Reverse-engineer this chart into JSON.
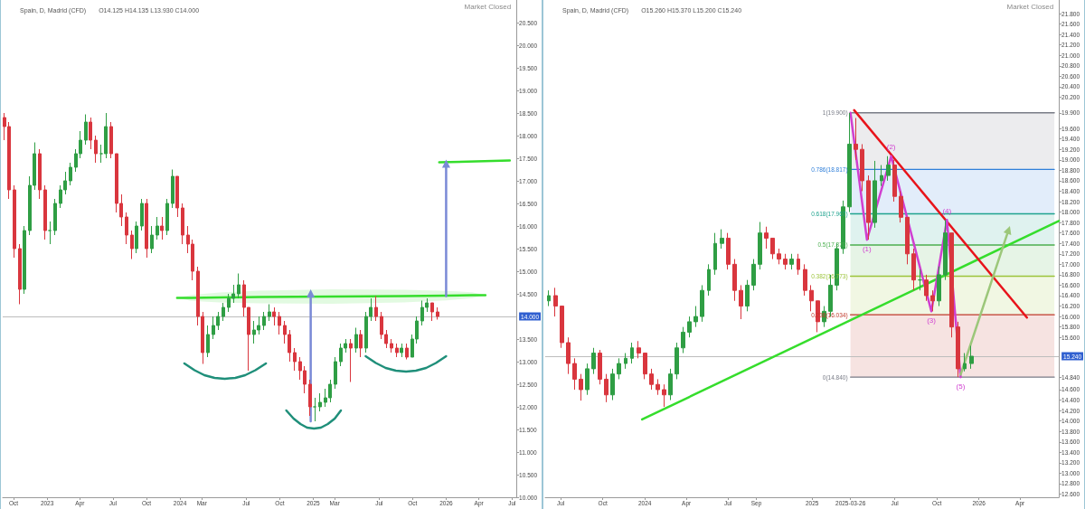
{
  "chart_data": [
    {
      "type": "candlestick",
      "title": "Spain, D, Madrid (CFD)",
      "subtitle": "O14.125 H14.135 L13.930 C14.000",
      "x": [
        "2022-09-05",
        "2022-09-19",
        "2022-10-03",
        "2022-10-17",
        "2022-10-31",
        "2022-11-14",
        "2022-11-28",
        "2022-12-12",
        "2022-12-26",
        "2023-01-09",
        "2023-01-23",
        "2023-02-06",
        "2023-02-20",
        "2023-03-06",
        "2023-03-20",
        "2023-04-03",
        "2023-04-17",
        "2023-05-01",
        "2023-05-15",
        "2023-05-29",
        "2023-06-12",
        "2023-06-26",
        "2023-07-10",
        "2023-07-24",
        "2023-08-07",
        "2023-08-21",
        "2023-09-04",
        "2023-09-18",
        "2023-10-02",
        "2023-10-16",
        "2023-10-30",
        "2023-11-13",
        "2023-11-27",
        "2023-12-11",
        "2023-12-25",
        "2024-01-08",
        "2024-01-22",
        "2024-02-05",
        "2024-02-19",
        "2024-03-04",
        "2024-03-18",
        "2024-04-01",
        "2024-04-15",
        "2024-04-29",
        "2024-05-13",
        "2024-05-27",
        "2024-06-10",
        "2024-06-24",
        "2024-07-08",
        "2024-07-22",
        "2024-08-05",
        "2024-08-19",
        "2024-09-02",
        "2024-09-16",
        "2024-09-30",
        "2024-10-14",
        "2024-10-28",
        "2024-11-11",
        "2024-11-25",
        "2024-12-09",
        "2024-12-23",
        "2025-01-06",
        "2025-01-20",
        "2025-02-03",
        "2025-02-17",
        "2025-03-03",
        "2025-03-17",
        "2025-03-31",
        "2025-04-14",
        "2025-04-28",
        "2025-05-12",
        "2025-05-26",
        "2025-06-09",
        "2025-06-23",
        "2025-07-07",
        "2025-07-21",
        "2025-08-04",
        "2025-08-18",
        "2025-09-01",
        "2025-09-15",
        "2025-09-29",
        "2025-10-13",
        "2025-10-27",
        "2025-11-10",
        "2025-11-24",
        "2025-12-08"
      ],
      "ohlc": [
        [
          18.4,
          18.5,
          17.9,
          18.2
        ],
        [
          18.2,
          18.3,
          16.6,
          16.8
        ],
        [
          16.8,
          16.9,
          15.3,
          15.5
        ],
        [
          15.5,
          15.6,
          14.27,
          14.6
        ],
        [
          14.6,
          16.0,
          14.5,
          15.9
        ],
        [
          15.9,
          17.1,
          15.8,
          16.9
        ],
        [
          16.9,
          17.85,
          16.8,
          17.6
        ],
        [
          17.6,
          17.7,
          16.6,
          16.8
        ],
        [
          16.8,
          16.9,
          15.7,
          15.9
        ],
        [
          15.9,
          16.1,
          15.6,
          15.9
        ],
        [
          15.9,
          16.6,
          15.8,
          16.5
        ],
        [
          16.5,
          16.9,
          16.4,
          16.8
        ],
        [
          16.8,
          17.2,
          16.7,
          17.0
        ],
        [
          17.0,
          17.4,
          16.9,
          17.3
        ],
        [
          17.3,
          17.7,
          17.2,
          17.6
        ],
        [
          17.6,
          18.1,
          17.5,
          17.9
        ],
        [
          17.9,
          18.47,
          17.8,
          18.3
        ],
        [
          18.3,
          18.4,
          17.7,
          17.9
        ],
        [
          17.9,
          18.0,
          17.4,
          17.6
        ],
        [
          17.6,
          17.8,
          17.4,
          17.6
        ],
        [
          17.6,
          18.5,
          17.5,
          18.2
        ],
        [
          18.2,
          18.3,
          17.5,
          17.6
        ],
        [
          17.6,
          17.6,
          16.3,
          16.5
        ],
        [
          16.5,
          16.7,
          16.0,
          16.2
        ],
        [
          16.2,
          16.3,
          15.6,
          15.8
        ],
        [
          15.8,
          15.9,
          15.27,
          15.5
        ],
        [
          15.5,
          16.1,
          15.4,
          16.0
        ],
        [
          16.0,
          16.6,
          15.9,
          16.5
        ],
        [
          16.5,
          16.6,
          15.3,
          15.5
        ],
        [
          15.5,
          16.0,
          15.4,
          15.8
        ],
        [
          15.8,
          16.2,
          15.7,
          16.0
        ],
        [
          16.0,
          16.2,
          15.7,
          15.9
        ],
        [
          15.9,
          16.6,
          15.8,
          16.5
        ],
        [
          16.5,
          17.25,
          16.4,
          17.1
        ],
        [
          17.1,
          17.1,
          16.2,
          16.4
        ],
        [
          16.4,
          16.5,
          15.6,
          15.8
        ],
        [
          15.8,
          16.0,
          15.4,
          15.6
        ],
        [
          15.6,
          15.7,
          14.8,
          15.0
        ],
        [
          15.0,
          15.1,
          13.8,
          14.0
        ],
        [
          14.0,
          14.1,
          12.95,
          13.2
        ],
        [
          13.2,
          13.8,
          13.1,
          13.6
        ],
        [
          13.6,
          14.0,
          13.5,
          13.8
        ],
        [
          13.8,
          14.1,
          13.7,
          14.0
        ],
        [
          14.0,
          14.3,
          13.9,
          14.2
        ],
        [
          14.2,
          14.5,
          14.1,
          14.4
        ],
        [
          14.4,
          14.7,
          14.3,
          14.5
        ],
        [
          14.5,
          14.95,
          14.4,
          14.7
        ],
        [
          14.7,
          14.8,
          14.0,
          14.2
        ],
        [
          14.2,
          14.2,
          12.8,
          13.6
        ],
        [
          13.6,
          13.9,
          13.4,
          13.7
        ],
        [
          13.7,
          14.0,
          13.6,
          13.8
        ],
        [
          13.8,
          14.1,
          13.7,
          14.0
        ],
        [
          14.0,
          14.27,
          13.9,
          14.1
        ],
        [
          14.1,
          14.2,
          13.8,
          14.0
        ],
        [
          14.0,
          14.1,
          13.6,
          13.8
        ],
        [
          13.8,
          13.9,
          13.4,
          13.6
        ],
        [
          13.6,
          13.7,
          13.0,
          13.2
        ],
        [
          13.2,
          13.3,
          12.8,
          13.0
        ],
        [
          13.0,
          13.1,
          12.6,
          12.8
        ],
        [
          12.8,
          12.9,
          12.3,
          12.5
        ],
        [
          12.5,
          12.6,
          11.8,
          12.0
        ],
        [
          12.0,
          12.2,
          11.68,
          12.0
        ],
        [
          12.0,
          12.3,
          11.9,
          12.1
        ],
        [
          12.1,
          12.4,
          12.0,
          12.2
        ],
        [
          12.2,
          12.6,
          12.1,
          12.5
        ],
        [
          12.5,
          13.1,
          12.4,
          13.0
        ],
        [
          13.0,
          13.4,
          12.9,
          13.3
        ],
        [
          13.3,
          13.5,
          13.2,
          13.4
        ],
        [
          13.4,
          13.5,
          12.55,
          13.3
        ],
        [
          13.3,
          13.75,
          13.2,
          13.6
        ],
        [
          13.6,
          13.7,
          13.1,
          13.3
        ],
        [
          13.3,
          14.1,
          13.2,
          14.0
        ],
        [
          14.0,
          14.4,
          13.9,
          14.2
        ],
        [
          14.2,
          14.45,
          13.9,
          14.0
        ],
        [
          14.0,
          14.1,
          13.5,
          13.6
        ],
        [
          13.6,
          13.7,
          13.3,
          13.4
        ],
        [
          13.4,
          13.5,
          13.2,
          13.3
        ],
        [
          13.3,
          13.4,
          13.1,
          13.2
        ],
        [
          13.2,
          13.4,
          13.1,
          13.3
        ],
        [
          13.3,
          13.4,
          13.05,
          13.1
        ],
        [
          13.1,
          13.6,
          13.1,
          13.5
        ],
        [
          13.5,
          14.0,
          13.4,
          13.9
        ],
        [
          13.9,
          14.35,
          13.8,
          14.2
        ],
        [
          14.2,
          14.4,
          14.1,
          14.3
        ],
        [
          14.3,
          14.3,
          13.9,
          14.1
        ],
        [
          14.1,
          14.2,
          13.93,
          14.0
        ]
      ],
      "colors": [
        "#d9363e",
        "#d9363e",
        "#d9363e",
        "#d9363e",
        "#2f9e44",
        "#2f9e44",
        "#2f9e44",
        "#d9363e",
        "#d9363e",
        "#2f9e44",
        "#2f9e44",
        "#2f9e44",
        "#2f9e44",
        "#2f9e44",
        "#2f9e44",
        "#2f9e44",
        "#2f9e44",
        "#d9363e",
        "#d9363e",
        "#2f9e44",
        "#2f9e44",
        "#d9363e",
        "#d9363e",
        "#d9363e",
        "#d9363e",
        "#d9363e",
        "#2f9e44",
        "#2f9e44",
        "#d9363e",
        "#2f9e44",
        "#2f9e44",
        "#d9363e",
        "#2f9e44",
        "#2f9e44",
        "#d9363e",
        "#d9363e",
        "#d9363e",
        "#d9363e",
        "#d9363e",
        "#d9363e",
        "#2f9e44",
        "#2f9e44",
        "#2f9e44",
        "#2f9e44",
        "#2f9e44",
        "#2f9e44",
        "#2f9e44",
        "#d9363e",
        "#d9363e",
        "#2f9e44",
        "#2f9e44",
        "#2f9e44",
        "#2f9e44",
        "#d9363e",
        "#d9363e",
        "#d9363e",
        "#d9363e",
        "#d9363e",
        "#d9363e",
        "#d9363e",
        "#d9363e",
        "#2f9e44",
        "#2f9e44",
        "#2f9e44",
        "#2f9e44",
        "#2f9e44",
        "#2f9e44",
        "#2f9e44",
        "#d9363e",
        "#2f9e44",
        "#d9363e",
        "#2f9e44",
        "#2f9e44",
        "#d9363e",
        "#d9363e",
        "#d9363e",
        "#d9363e",
        "#d9363e",
        "#2f9e44",
        "#d9363e",
        "#2f9e44",
        "#2f9e44",
        "#2f9e44",
        "#2f9e44",
        "#d9363e",
        "#d9363e"
      ],
      "series": [
        {
          "type": "line",
          "color": "#35dd2c",
          "x": [
            "2023-12-24",
            "2024-01-31",
            "2024-04-19",
            "2024-08-07",
            "2025-02-21",
            "2025-09-06",
            "2026-01-01",
            "2026-03-13",
            "2026-04-19"
          ],
          "values": [
            14.41,
            14.41,
            14.42,
            14.43,
            14.44,
            14.45,
            14.46,
            14.47,
            14.47
          ],
          "lower": [
            14.41,
            14.343,
            14.31,
            14.288,
            14.28,
            14.308,
            14.353,
            14.405,
            14.47
          ],
          "upper": [
            14.41,
            14.477,
            14.53,
            14.572,
            14.6,
            14.592,
            14.567,
            14.535,
            14.47
          ]
        },
        {
          "type": "line",
          "color": "#35dd2c",
          "x": [
            "2025-12-13",
            "2026-06-25"
          ],
          "values": [
            17.41,
            17.45
          ]
        },
        {
          "type": "line",
          "color": "#7a8ad6",
          "marker": "triangle",
          "x": [
            "2024-12-25",
            "2024-12-25"
          ],
          "values": [
            11.68,
            14.51
          ]
        },
        {
          "type": "line",
          "color": "#7a8ad6",
          "marker": "triangle",
          "x": [
            "2026-01-01",
            "2026-01-01"
          ],
          "values": [
            14.45,
            17.38
          ]
        },
        {
          "type": "line",
          "color": "#1f8f7a",
          "x": [
            "2024-01-13",
            "2024-02-10",
            "2024-03-08",
            "2024-04-05",
            "2024-05-03",
            "2024-06-01",
            "2024-06-28",
            "2024-07-26",
            "2024-08-24"
          ],
          "values": [
            12.96,
            12.81,
            12.7,
            12.64,
            12.62,
            12.64,
            12.7,
            12.81,
            12.96
          ]
        },
        {
          "type": "line",
          "color": "#1f8f7a",
          "x": [
            "2024-10-19",
            "2024-11-08",
            "2024-11-27",
            "2024-12-15",
            "2025-01-03",
            "2025-01-22",
            "2025-02-10",
            "2025-03-01",
            "2025-03-18"
          ],
          "values": [
            11.92,
            11.74,
            11.62,
            11.54,
            11.52,
            11.54,
            11.62,
            11.74,
            11.92
          ]
        },
        {
          "type": "line",
          "color": "#1f8f7a",
          "x": [
            "2025-05-25",
            "2025-06-22",
            "2025-07-19",
            "2025-08-16",
            "2025-09-13",
            "2025-10-10",
            "2025-11-07",
            "2025-12-04",
            "2026-01-01"
          ],
          "values": [
            13.12,
            12.97,
            12.86,
            12.8,
            12.78,
            12.8,
            12.86,
            12.97,
            13.12
          ]
        }
      ],
      "ref_lines": [
        {
          "axis": "y",
          "value": 14.0,
          "label": "14.000",
          "color": "#bdbdbd"
        }
      ],
      "annotations": [
        "Market Closed"
      ],
      "xlim": [
        "2022-09-01",
        "2026-07-13"
      ],
      "xticks": [
        {
          "value": "2022-10-01",
          "label": "Oct"
        },
        {
          "value": "2023-01-01",
          "label": "2023"
        },
        {
          "value": "2023-04-01",
          "label": "Apr"
        },
        {
          "value": "2023-07-01",
          "label": "Jul"
        },
        {
          "value": "2023-10-01",
          "label": "Oct"
        },
        {
          "value": "2024-01-01",
          "label": "2024"
        },
        {
          "value": "2024-03-01",
          "label": "Mar"
        },
        {
          "value": "2024-07-01",
          "label": "Jul"
        },
        {
          "value": "2024-10-01",
          "label": "Oct"
        },
        {
          "value": "2025-01-01",
          "label": "2025"
        },
        {
          "value": "2025-03-01",
          "label": "Mar"
        },
        {
          "value": "2025-07-01",
          "label": "Jul"
        },
        {
          "value": "2025-10-01",
          "label": "Oct"
        },
        {
          "value": "2026-01-01",
          "label": "2026"
        },
        {
          "value": "2026-04-01",
          "label": "Apr"
        },
        {
          "value": "2026-07-01",
          "label": "Jul"
        }
      ],
      "ylim": [
        10,
        21
      ],
      "yticks": [
        {
          "value": 10,
          "label": "10.000"
        },
        {
          "value": 10.5,
          "label": "10.500"
        },
        {
          "value": 11,
          "label": "11.000"
        },
        {
          "value": 11.5,
          "label": "11.500"
        },
        {
          "value": 12,
          "label": "12.000"
        },
        {
          "value": 12.5,
          "label": "12.500"
        },
        {
          "value": 13,
          "label": "13.000"
        },
        {
          "value": 13.5,
          "label": "13.500"
        },
        {
          "value": 14.5,
          "label": "14.500"
        },
        {
          "value": 15,
          "label": "15.000"
        },
        {
          "value": 15.5,
          "label": "15.500"
        },
        {
          "value": 16,
          "label": "16.000"
        },
        {
          "value": 16.5,
          "label": "16.500"
        },
        {
          "value": 17,
          "label": "17.000"
        },
        {
          "value": 17.5,
          "label": "17.500"
        },
        {
          "value": 18,
          "label": "18.000"
        },
        {
          "value": 18.5,
          "label": "18.500"
        },
        {
          "value": 19,
          "label": "19.000"
        },
        {
          "value": 19.5,
          "label": "19.500"
        },
        {
          "value": 20,
          "label": "20.000"
        },
        {
          "value": 20.5,
          "label": "20.500"
        }
      ],
      "grid": false,
      "legend": false
    },
    {
      "type": "candlestick",
      "title": "Spain, D, Madrid (CFD)",
      "subtitle": "O15.260 H15.370 L15.200 C15.240",
      "x": [
        "2023-06-05",
        "2023-06-19",
        "2023-07-03",
        "2023-07-17",
        "2023-07-31",
        "2023-08-14",
        "2023-08-28",
        "2023-09-11",
        "2023-09-25",
        "2023-10-09",
        "2023-10-23",
        "2023-11-06",
        "2023-11-20",
        "2023-12-04",
        "2023-12-18",
        "2024-01-01",
        "2024-01-15",
        "2024-01-29",
        "2024-02-12",
        "2024-02-26",
        "2024-03-11",
        "2024-03-25",
        "2024-04-08",
        "2024-04-22",
        "2024-05-06",
        "2024-05-20",
        "2024-06-03",
        "2024-06-17",
        "2024-07-01",
        "2024-07-15",
        "2024-07-29",
        "2024-08-12",
        "2024-08-26",
        "2024-09-09",
        "2024-09-23",
        "2024-10-07",
        "2024-10-21",
        "2024-11-04",
        "2024-11-18",
        "2024-12-02",
        "2024-12-16",
        "2024-12-30",
        "2025-01-13",
        "2025-01-27",
        "2025-02-10",
        "2025-02-24",
        "2025-03-10",
        "2025-03-24",
        "2025-04-07",
        "2025-04-21",
        "2025-05-05",
        "2025-05-19",
        "2025-06-02",
        "2025-06-16",
        "2025-06-30",
        "2025-07-14",
        "2025-07-28",
        "2025-08-11",
        "2025-08-25",
        "2025-09-08",
        "2025-09-22",
        "2025-10-06",
        "2025-10-20",
        "2025-11-03",
        "2025-11-17",
        "2025-12-01",
        "2025-12-15"
      ],
      "ohlc": [
        [
          16.3,
          16.5,
          16.2,
          16.4
        ],
        [
          16.4,
          16.55,
          16.0,
          16.2
        ],
        [
          16.2,
          16.2,
          15.4,
          15.5
        ],
        [
          15.5,
          15.6,
          14.9,
          15.1
        ],
        [
          15.1,
          15.2,
          14.6,
          14.8
        ],
        [
          14.8,
          14.9,
          14.39,
          14.6
        ],
        [
          14.6,
          15.1,
          14.5,
          15.0
        ],
        [
          15.0,
          15.4,
          14.9,
          15.3
        ],
        [
          15.3,
          15.36,
          14.7,
          14.8
        ],
        [
          14.8,
          14.9,
          14.36,
          14.5
        ],
        [
          14.5,
          15.0,
          14.4,
          14.9
        ],
        [
          14.9,
          15.2,
          14.8,
          15.1
        ],
        [
          15.1,
          15.3,
          15.0,
          15.2
        ],
        [
          15.2,
          15.5,
          15.1,
          15.4
        ],
        [
          15.4,
          15.53,
          15.2,
          15.3
        ],
        [
          15.3,
          15.3,
          14.8,
          14.9
        ],
        [
          14.9,
          15.0,
          14.6,
          14.7
        ],
        [
          14.7,
          14.8,
          14.5,
          14.6
        ],
        [
          14.6,
          14.7,
          14.27,
          14.5
        ],
        [
          14.5,
          15.0,
          14.4,
          14.9
        ],
        [
          14.9,
          15.5,
          14.8,
          15.4
        ],
        [
          15.4,
          15.8,
          15.3,
          15.7
        ],
        [
          15.7,
          16.0,
          15.6,
          15.9
        ],
        [
          15.9,
          16.2,
          15.8,
          16.0
        ],
        [
          16.0,
          16.6,
          15.9,
          16.5
        ],
        [
          16.5,
          17.0,
          16.4,
          16.9
        ],
        [
          16.9,
          17.6,
          16.8,
          17.4
        ],
        [
          17.4,
          17.67,
          17.3,
          17.5
        ],
        [
          17.5,
          17.6,
          16.9,
          17.0
        ],
        [
          17.0,
          17.1,
          16.3,
          16.5
        ],
        [
          16.5,
          16.6,
          15.95,
          16.2
        ],
        [
          16.2,
          16.7,
          16.1,
          16.6
        ],
        [
          16.6,
          17.1,
          16.5,
          17.0
        ],
        [
          17.0,
          17.81,
          16.9,
          17.6
        ],
        [
          17.6,
          17.72,
          17.3,
          17.5
        ],
        [
          17.5,
          17.5,
          17.1,
          17.2
        ],
        [
          17.2,
          17.3,
          17.0,
          17.1
        ],
        [
          17.1,
          17.2,
          16.9,
          17.0
        ],
        [
          17.0,
          17.2,
          16.9,
          17.1
        ],
        [
          17.1,
          17.2,
          16.8,
          16.9
        ],
        [
          16.9,
          17.0,
          16.4,
          16.5
        ],
        [
          16.5,
          16.6,
          16.1,
          16.3
        ],
        [
          16.3,
          16.3,
          15.7,
          15.9
        ],
        [
          15.9,
          16.2,
          15.8,
          16.1
        ],
        [
          16.1,
          16.8,
          16.0,
          16.6
        ],
        [
          16.6,
          17.4,
          16.5,
          17.3
        ],
        [
          17.3,
          18.22,
          17.2,
          18.1
        ],
        [
          18.1,
          19.9,
          18.0,
          19.3
        ],
        [
          19.3,
          19.8,
          19.0,
          19.2
        ],
        [
          19.2,
          19.3,
          18.4,
          18.6
        ],
        [
          18.6,
          18.7,
          17.47,
          17.8
        ],
        [
          17.8,
          18.98,
          17.7,
          18.6
        ],
        [
          18.6,
          18.9,
          18.5,
          18.7
        ],
        [
          18.7,
          19.07,
          18.6,
          18.9
        ],
        [
          18.9,
          19.0,
          18.2,
          18.3
        ],
        [
          18.3,
          18.4,
          17.8,
          17.9
        ],
        [
          17.9,
          17.9,
          17.0,
          17.2
        ],
        [
          17.2,
          17.3,
          16.5,
          16.7
        ],
        [
          16.7,
          16.9,
          16.5,
          16.7
        ],
        [
          16.7,
          16.8,
          16.3,
          16.4
        ],
        [
          16.4,
          16.5,
          16.1,
          16.3
        ],
        [
          16.3,
          16.96,
          16.2,
          16.8
        ],
        [
          16.8,
          17.85,
          16.7,
          17.6
        ],
        [
          17.6,
          17.6,
          15.6,
          15.8
        ],
        [
          15.8,
          15.9,
          14.84,
          15.0
        ],
        [
          15.0,
          15.3,
          14.95,
          15.1
        ],
        [
          15.1,
          15.44,
          15.0,
          15.24
        ]
      ],
      "colors": [
        "#2f9e44",
        "#d9363e",
        "#d9363e",
        "#d9363e",
        "#d9363e",
        "#d9363e",
        "#2f9e44",
        "#2f9e44",
        "#d9363e",
        "#d9363e",
        "#2f9e44",
        "#2f9e44",
        "#2f9e44",
        "#2f9e44",
        "#d9363e",
        "#d9363e",
        "#d9363e",
        "#d9363e",
        "#d9363e",
        "#2f9e44",
        "#2f9e44",
        "#2f9e44",
        "#2f9e44",
        "#2f9e44",
        "#2f9e44",
        "#2f9e44",
        "#2f9e44",
        "#2f9e44",
        "#d9363e",
        "#d9363e",
        "#d9363e",
        "#2f9e44",
        "#2f9e44",
        "#2f9e44",
        "#d9363e",
        "#d9363e",
        "#d9363e",
        "#d9363e",
        "#2f9e44",
        "#d9363e",
        "#d9363e",
        "#d9363e",
        "#d9363e",
        "#2f9e44",
        "#2f9e44",
        "#2f9e44",
        "#2f9e44",
        "#2f9e44",
        "#d9363e",
        "#d9363e",
        "#d9363e",
        "#2f9e44",
        "#2f9e44",
        "#2f9e44",
        "#d9363e",
        "#d9363e",
        "#d9363e",
        "#d9363e",
        "#2f9e44",
        "#d9363e",
        "#d9363e",
        "#2f9e44",
        "#2f9e44",
        "#d9363e",
        "#d9363e",
        "#2f9e44",
        "#2f9e44"
      ],
      "series": [
        {
          "type": "line",
          "name": "1(19.900)",
          "color": "#787b86",
          "x": [
            "2025-03-26",
            "2026-06-15"
          ],
          "values": [
            19.9,
            19.9
          ],
          "lower": [
            18.817,
            18.817
          ],
          "upper": [
            19.9,
            19.9
          ]
        },
        {
          "type": "line",
          "name": "0.786(18.817)",
          "color": "#2f7fd9",
          "x": [
            "2025-03-26",
            "2026-06-15"
          ],
          "values": [
            18.817,
            18.817
          ],
          "lower": [
            17.967,
            17.967
          ],
          "upper": [
            18.817,
            18.817
          ]
        },
        {
          "type": "line",
          "name": "0.618(17.967)",
          "color": "#1fa38f",
          "x": [
            "2025-03-26",
            "2026-06-15"
          ],
          "values": [
            17.967,
            17.967
          ],
          "lower": [
            17.37,
            17.37
          ],
          "upper": [
            17.967,
            17.967
          ]
        },
        {
          "type": "line",
          "name": "0.5(17.370)",
          "color": "#4caf50",
          "x": [
            "2025-03-26",
            "2026-06-15"
          ],
          "values": [
            17.37,
            17.37
          ],
          "lower": [
            16.773,
            16.773
          ],
          "upper": [
            17.37,
            17.37
          ]
        },
        {
          "type": "line",
          "name": "0.382(16.773)",
          "color": "#9cc43a",
          "x": [
            "2025-03-26",
            "2026-06-15"
          ],
          "values": [
            16.773,
            16.773
          ],
          "lower": [
            16.034,
            16.034
          ],
          "upper": [
            16.773,
            16.773
          ]
        },
        {
          "type": "line",
          "name": "0.236(16.034)",
          "color": "#c0392b",
          "x": [
            "2025-03-26",
            "2026-06-15"
          ],
          "values": [
            16.034,
            16.034
          ],
          "lower": [
            14.84,
            14.84
          ],
          "upper": [
            16.034,
            16.034
          ]
        },
        {
          "type": "line",
          "name": "0(14.840)",
          "color": "#787b86",
          "x": [
            "2025-03-26",
            "2026-06-15"
          ],
          "values": [
            14.84,
            14.84
          ]
        },
        {
          "type": "line",
          "color": "#35dd2c",
          "x": [
            "2023-12-26",
            "2026-06-25"
          ],
          "values": [
            14.03,
            17.83
          ]
        },
        {
          "type": "line",
          "color": "#e8141b",
          "x": [
            "2025-04-03",
            "2026-04-16"
          ],
          "values": [
            19.95,
            15.98
          ]
        },
        {
          "type": "line",
          "color": "#d03fd0",
          "x": [
            "2025-03-26",
            "2025-05-01",
            "2025-06-23",
            "2025-09-19",
            "2025-10-23",
            "2025-11-22"
          ],
          "values": [
            19.9,
            17.47,
            19.07,
            16.1,
            17.85,
            14.84
          ]
        },
        {
          "type": "line",
          "color": "#9cc77a",
          "marker": "triangle",
          "x": [
            "2025-11-22",
            "2026-03-07"
          ],
          "values": [
            14.89,
            17.66
          ]
        }
      ],
      "ref_lines": [
        {
          "axis": "y",
          "value": 15.24,
          "label": "15.240",
          "color": "#bdbdbd"
        }
      ],
      "annotations": [
        "Market Closed",
        {
          "text": "(1)",
          "x": "2025-05-01",
          "y": 17.47
        },
        {
          "text": "(2)",
          "x": "2025-06-23",
          "y": 19.07
        },
        {
          "text": "(3)",
          "x": "2025-09-19",
          "y": 16.1
        },
        {
          "text": "(4)",
          "x": "2025-10-23",
          "y": 17.85
        },
        {
          "text": "(5)",
          "x": "2025-11-22",
          "y": 14.84
        }
      ],
      "xlim": [
        "2023-05-28",
        "2026-06-25"
      ],
      "xticks": [
        {
          "value": "2023-07-01",
          "label": "Jul"
        },
        {
          "value": "2023-10-01",
          "label": "Oct"
        },
        {
          "value": "2024-01-01",
          "label": "2024"
        },
        {
          "value": "2024-04-01",
          "label": "Apr"
        },
        {
          "value": "2024-07-01",
          "label": "Jul"
        },
        {
          "value": "2024-09-01",
          "label": "Sep"
        },
        {
          "value": "2025-01-01",
          "label": "2025"
        },
        {
          "value": "2025-03-26",
          "label": "2025-03-26"
        },
        {
          "value": "2025-07-01",
          "label": "Jul"
        },
        {
          "value": "2025-10-01",
          "label": "Oct"
        },
        {
          "value": "2026-01-01",
          "label": "2026"
        },
        {
          "value": "2026-04-01",
          "label": "Apr"
        }
      ],
      "ylim": [
        12.54,
        22.06
      ],
      "yticks": [
        {
          "value": 12.6,
          "label": "12.600"
        },
        {
          "value": 12.8,
          "label": "12.800"
        },
        {
          "value": 13,
          "label": "13.000"
        },
        {
          "value": 13.2,
          "label": "13.200"
        },
        {
          "value": 13.4,
          "label": "13.400"
        },
        {
          "value": 13.6,
          "label": "13.600"
        },
        {
          "value": 13.8,
          "label": "13.800"
        },
        {
          "value": 14,
          "label": "14.000"
        },
        {
          "value": 14.2,
          "label": "14.200"
        },
        {
          "value": 14.4,
          "label": "14.400"
        },
        {
          "value": 14.6,
          "label": "14.600"
        },
        {
          "value": 14.84,
          "label": "14.840"
        },
        {
          "value": 15.6,
          "label": "15.600"
        },
        {
          "value": 15.8,
          "label": "15.800"
        },
        {
          "value": 16,
          "label": "16.000"
        },
        {
          "value": 16.2,
          "label": "16.200"
        },
        {
          "value": 16.4,
          "label": "16.400"
        },
        {
          "value": 16.6,
          "label": "16.600"
        },
        {
          "value": 16.8,
          "label": "16.800"
        },
        {
          "value": 17,
          "label": "17.000"
        },
        {
          "value": 17.2,
          "label": "17.200"
        },
        {
          "value": 17.4,
          "label": "17.400"
        },
        {
          "value": 17.6,
          "label": "17.600"
        },
        {
          "value": 17.8,
          "label": "17.800"
        },
        {
          "value": 18,
          "label": "18.000"
        },
        {
          "value": 18.2,
          "label": "18.200"
        },
        {
          "value": 18.4,
          "label": "18.400"
        },
        {
          "value": 18.6,
          "label": "18.600"
        },
        {
          "value": 18.8,
          "label": "18.800"
        },
        {
          "value": 19,
          "label": "19.000"
        },
        {
          "value": 19.2,
          "label": "19.200"
        },
        {
          "value": 19.4,
          "label": "19.400"
        },
        {
          "value": 19.6,
          "label": "19.600"
        },
        {
          "value": 19.9,
          "label": "19.900"
        },
        {
          "value": 20.2,
          "label": "20.200"
        },
        {
          "value": 20.4,
          "label": "20.400"
        },
        {
          "value": 20.6,
          "label": "20.600"
        },
        {
          "value": 20.8,
          "label": "20.800"
        },
        {
          "value": 21,
          "label": "21.000"
        },
        {
          "value": 21.2,
          "label": "21.200"
        },
        {
          "value": 21.4,
          "label": "21.400"
        },
        {
          "value": 21.6,
          "label": "21.600"
        },
        {
          "value": 21.8,
          "label": "21.800"
        }
      ],
      "grid": false,
      "legend": false
    }
  ]
}
